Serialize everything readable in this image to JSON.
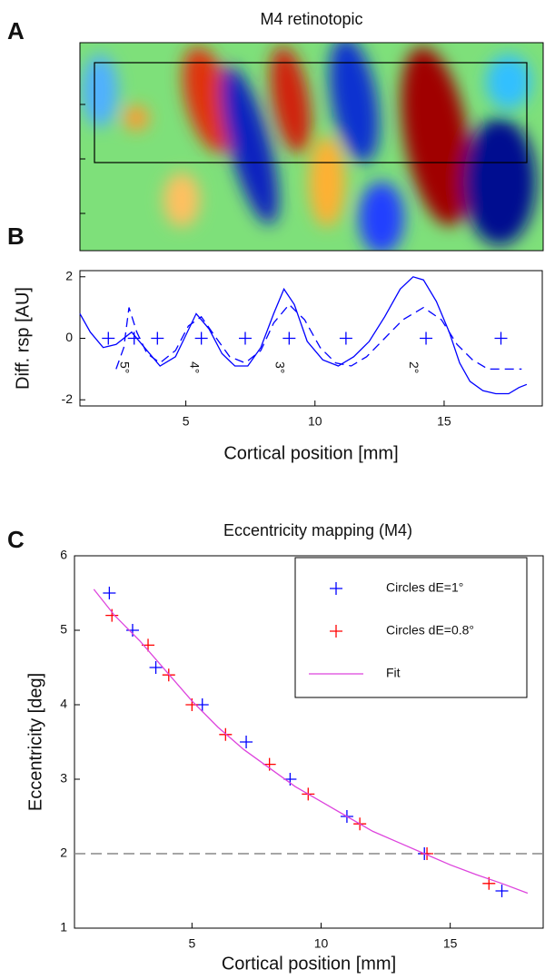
{
  "chart_data": [
    {
      "type": "image",
      "label": "A",
      "title": "M4 retinotopic"
    },
    {
      "type": "line",
      "label": "B",
      "ylabel": "Diff. rsp [AU]",
      "xlabel": "Cortical position [mm]",
      "xlim": [
        0.9,
        18.8
      ],
      "ylim": [
        -2.2,
        2.2
      ],
      "xticks": [
        5,
        10,
        15
      ],
      "yticks": [
        -2,
        0,
        2
      ],
      "series": [
        {
          "color": "#0000ff",
          "linestyle": "solid",
          "x": [
            0.9,
            1.3,
            1.8,
            2.3,
            2.9,
            3.4,
            4.0,
            4.6,
            5.0,
            5.4,
            5.9,
            6.4,
            6.9,
            7.4,
            7.9,
            8.4,
            8.8,
            9.2,
            9.7,
            10.3,
            10.9,
            11.5,
            12.1,
            12.7,
            13.3,
            13.8,
            14.2,
            14.7,
            15.2,
            15.6,
            16.0,
            16.5,
            17.0,
            17.5,
            17.9,
            18.2
          ],
          "values": [
            0.8,
            0.2,
            -0.3,
            -0.2,
            0.2,
            -0.3,
            -0.9,
            -0.6,
            0.1,
            0.8,
            0.3,
            -0.5,
            -0.9,
            -0.9,
            -0.3,
            0.8,
            1.6,
            1.1,
            -0.1,
            -0.7,
            -0.9,
            -0.6,
            -0.1,
            0.7,
            1.6,
            2.0,
            1.9,
            1.2,
            0.2,
            -0.8,
            -1.4,
            -1.7,
            -1.8,
            -1.8,
            -1.6,
            -1.5
          ]
        },
        {
          "color": "#0000ff",
          "linestyle": "dashed",
          "x": [
            2.3,
            2.6,
            2.8,
            3.1,
            3.5,
            4.0,
            4.6,
            5.1,
            5.6,
            6.1,
            6.7,
            7.3,
            7.9,
            8.4,
            9.0,
            9.6,
            10.2,
            10.8,
            11.4,
            12.0,
            12.7,
            13.4,
            14.2,
            14.9,
            15.5,
            16.1,
            16.7,
            17.3,
            18.0
          ],
          "values": [
            -1.0,
            -0.3,
            1.0,
            0.2,
            -0.5,
            -0.8,
            -0.4,
            0.4,
            0.7,
            0.1,
            -0.6,
            -0.8,
            -0.4,
            0.5,
            1.1,
            0.6,
            -0.3,
            -0.8,
            -0.9,
            -0.6,
            0.0,
            0.6,
            1.0,
            0.6,
            -0.2,
            -0.7,
            -1.0,
            -1.0,
            -1.0
          ]
        },
        {
          "color": "#0000ff",
          "marker": "+",
          "x": [
            2.0,
            3.0,
            3.9,
            5.6,
            7.3,
            9.0,
            11.2,
            14.3,
            17.2
          ],
          "values": [
            0,
            0,
            0,
            0,
            0,
            0,
            0,
            0,
            0
          ]
        }
      ],
      "annotations": [
        {
          "text": "5°",
          "x": 2.6,
          "y": -0.95
        },
        {
          "text": "4°",
          "x": 5.3,
          "y": -0.95
        },
        {
          "text": "3°",
          "x": 8.6,
          "y": -0.95
        },
        {
          "text": "2°",
          "x": 13.8,
          "y": -0.95
        }
      ]
    },
    {
      "type": "scatter",
      "label": "C",
      "title": "Eccentricity mapping (M4)",
      "ylabel": "Eccentricity [deg]",
      "xlabel": "Cortical position [mm]",
      "xlim": [
        0.45,
        18.6
      ],
      "ylim": [
        1,
        6
      ],
      "xticks": [
        5,
        10,
        15
      ],
      "yticks": [
        1,
        2,
        3,
        4,
        5,
        6
      ],
      "hline": 2,
      "series": [
        {
          "name": "Circles dE=1°",
          "color": "#0000ff",
          "marker": "+",
          "x": [
            1.8,
            2.7,
            3.6,
            5.4,
            7.1,
            8.8,
            11.0,
            14.0,
            17.0
          ],
          "values": [
            5.5,
            5.0,
            4.5,
            4.0,
            3.5,
            3.0,
            2.5,
            2.0,
            1.5
          ]
        },
        {
          "name": "Circles dE=0.8°",
          "color": "#ff0000",
          "marker": "+",
          "x": [
            1.9,
            3.3,
            4.1,
            5.0,
            6.3,
            8.0,
            9.5,
            11.5,
            14.1,
            16.5
          ],
          "values": [
            5.2,
            4.8,
            4.4,
            4.0,
            3.6,
            3.2,
            2.8,
            2.4,
            2.0,
            1.6
          ]
        },
        {
          "name": "Fit",
          "color": "#dd44dd",
          "linestyle": "solid",
          "x": [
            1.2,
            2,
            3,
            4,
            5,
            6,
            7,
            8,
            9,
            10,
            11,
            12,
            13,
            14,
            15,
            16,
            17,
            18
          ],
          "values": [
            5.55,
            5.2,
            4.85,
            4.45,
            4.05,
            3.7,
            3.4,
            3.15,
            2.9,
            2.7,
            2.5,
            2.3,
            2.15,
            2.0,
            1.85,
            1.72,
            1.6,
            1.47
          ]
        }
      ]
    }
  ]
}
